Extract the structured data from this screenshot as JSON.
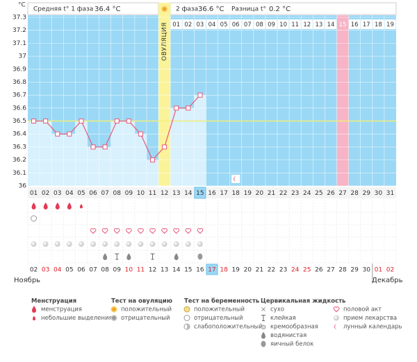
{
  "unit_label": "°C",
  "phase1": {
    "label": "Средняя t° 1 фаза",
    "value": "36.4 °C"
  },
  "phase2": {
    "label": "2 фаза",
    "value": "36.6 °C"
  },
  "difference": {
    "label": "Разница t°",
    "value": "0.2 °C"
  },
  "ovulation_label": "ОВУЛЯЦИЯ",
  "chart_data": {
    "type": "line",
    "categories": [
      "01",
      "02",
      "03",
      "04",
      "05",
      "06",
      "07",
      "08",
      "09",
      "10",
      "11",
      "12",
      "13",
      "14",
      "15",
      "16",
      "17",
      "18",
      "19",
      "20",
      "21",
      "22",
      "23",
      "24",
      "25",
      "26",
      "27",
      "28",
      "29",
      "30",
      "31"
    ],
    "values": [
      36.5,
      36.5,
      36.4,
      36.4,
      36.5,
      36.3,
      36.3,
      36.5,
      36.5,
      36.4,
      36.2,
      36.3,
      36.6,
      36.6,
      36.7,
      null,
      null,
      null,
      null,
      null,
      null,
      null,
      null,
      null,
      null,
      null,
      null,
      null,
      null,
      null,
      null
    ],
    "ylim": [
      36,
      37.3
    ],
    "yticks": [
      36,
      36.1,
      36.2,
      36.3,
      36.4,
      36.5,
      36.6,
      36.7,
      36.8,
      36.9,
      37,
      37.1,
      37.2,
      37.3
    ],
    "coverline": 36.5,
    "color": "#e8577a",
    "grid": true,
    "ovulation_day": 11,
    "highlight_day": 14,
    "cycle_start": 12,
    "cycle_days": [
      "01",
      "02",
      "03",
      "04",
      "05",
      "06",
      "07",
      "08",
      "09",
      "10",
      "11",
      "12",
      "13",
      "14",
      "15",
      "16",
      "17",
      "18",
      "19"
    ],
    "highlight_cycle_day": 14,
    "dates": [
      "02",
      "03",
      "04",
      "05",
      "06",
      "07",
      "08",
      "09",
      "10",
      "11",
      "12",
      "13",
      "14",
      "15",
      "16",
      "17",
      "18",
      "19",
      "20",
      "21",
      "22",
      "23",
      "24",
      "25",
      "26",
      "27",
      "28",
      "29",
      "30",
      "01",
      "02"
    ],
    "weekends": [
      1,
      2,
      8,
      9,
      15,
      16,
      22,
      23,
      29,
      30
    ],
    "weekend_color": "#e0202a",
    "month_break": 29,
    "months": [
      "Ноябрь",
      "Декабрь"
    ]
  },
  "legend": [
    {
      "title": "Менструация",
      "items": [
        "менструация",
        "небольшие выделения"
      ]
    },
    {
      "title": "Тест на овуляцию",
      "items": [
        "положительный",
        "отрицательный"
      ]
    },
    {
      "title": "Тест на беременность",
      "items": [
        "положительный",
        "отрицательный",
        "слабоположительный"
      ]
    },
    {
      "title": "Цервикальная жидкость",
      "items": [
        "сухо",
        "клейкая",
        "кремообразная",
        "водянистая",
        "яичный белок"
      ]
    },
    {
      "items": [
        "половой акт",
        "прием лекарства",
        "лунный календарь"
      ]
    }
  ],
  "marks": [
    {
      "row": 0,
      "icon": [
        0,
        0
      ],
      "days": [
        0,
        1,
        2,
        3
      ]
    },
    {
      "row": 0,
      "icon": [
        0,
        1
      ],
      "days": [
        4
      ]
    },
    {
      "row": 1,
      "icon": [
        2,
        1
      ],
      "days": [
        0
      ]
    },
    {
      "row": 2,
      "icon": [
        4,
        0
      ],
      "days": [
        5,
        6,
        7,
        8,
        9,
        10,
        11,
        12,
        13,
        14
      ]
    },
    {
      "row": 3,
      "icon": [
        4,
        1
      ],
      "days": [
        0,
        1,
        2,
        3,
        4,
        5,
        6,
        7,
        8,
        9,
        10,
        11,
        12,
        13,
        14
      ]
    },
    {
      "row": 4,
      "icon": [
        3,
        3
      ],
      "days": [
        6,
        8,
        12
      ]
    },
    {
      "row": 4,
      "icon": [
        3,
        1
      ],
      "days": [
        7,
        10
      ]
    },
    {
      "row": 4,
      "icon": [
        3,
        4
      ],
      "days": [
        14
      ]
    },
    {
      "row": -1,
      "icon": [
        4,
        2
      ],
      "days": [
        17
      ]
    },
    {
      "row": -2,
      "icon": [
        1,
        0
      ],
      "days": [
        11
      ]
    }
  ]
}
